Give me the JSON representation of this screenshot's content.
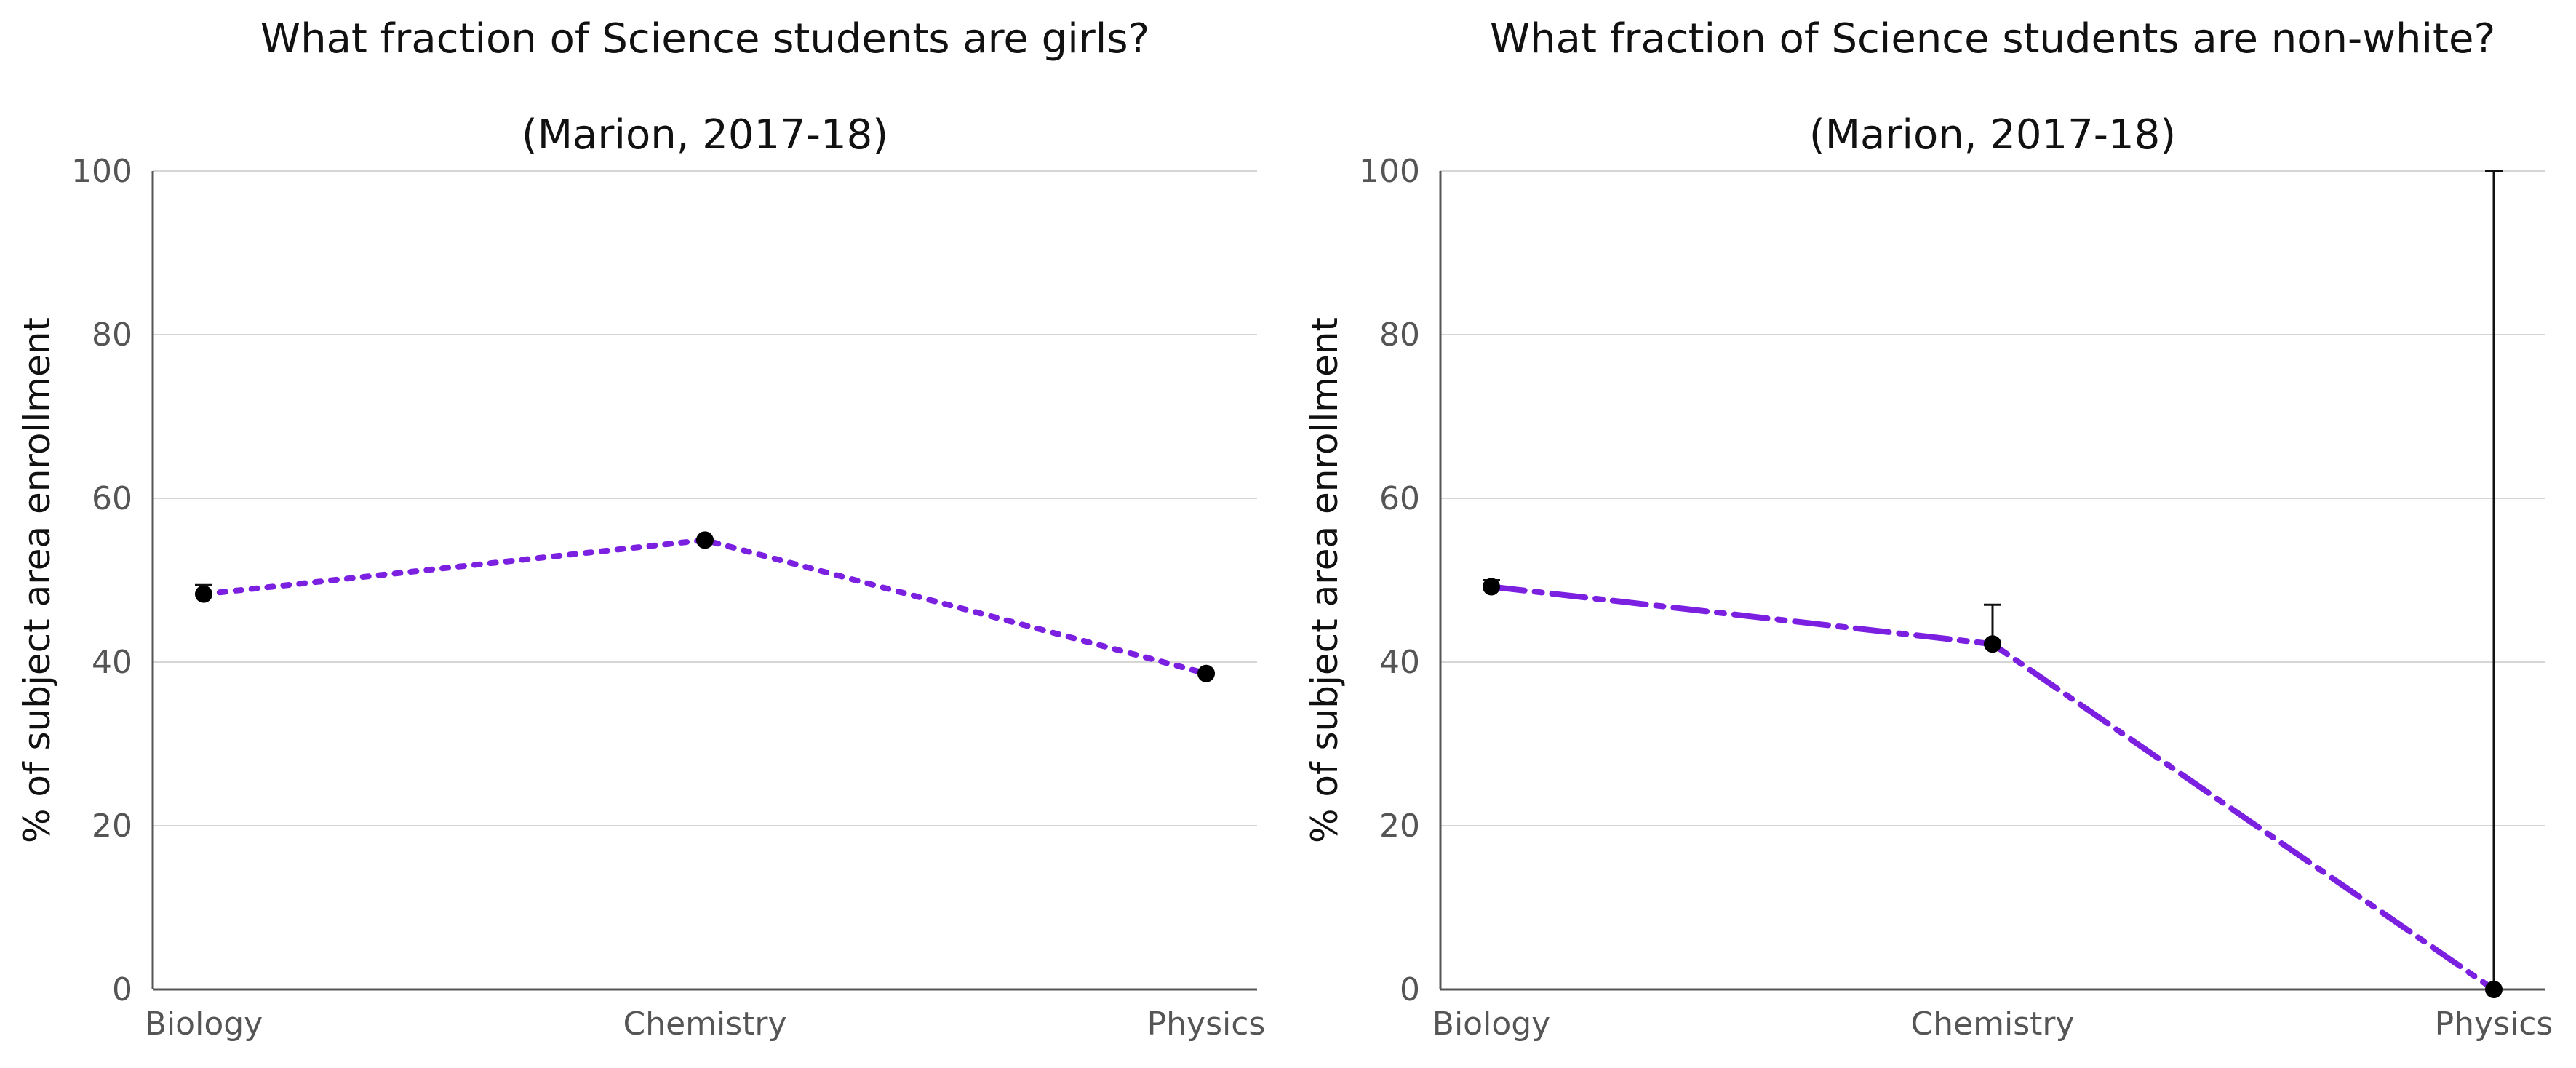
{
  "chart_data": [
    {
      "type": "line",
      "title": "What fraction of Science students are girls?",
      "subtitle": "(Marion, 2017-18)",
      "xlabel": "",
      "ylabel": "% of subject area enrollment",
      "categories": [
        "Biology",
        "Chemistry",
        "Physics"
      ],
      "ylim": [
        0,
        100
      ],
      "yticks": [
        0,
        20,
        40,
        60,
        80,
        100
      ],
      "grid": true,
      "series": [
        {
          "values": [
            48.3,
            54.9,
            38.6
          ],
          "error_upper": [
            49.4,
            55.0,
            38.7
          ],
          "color": "#7b1fe0",
          "line_style": "dotted"
        }
      ]
    },
    {
      "type": "line",
      "title": "What fraction of Science students are non-white?",
      "subtitle": "(Marion, 2017-18)",
      "xlabel": "",
      "ylabel": "% of subject area enrollment",
      "categories": [
        "Biology",
        "Chemistry",
        "Physics"
      ],
      "ylim": [
        0,
        100
      ],
      "yticks": [
        0,
        20,
        40,
        60,
        80,
        100
      ],
      "grid": true,
      "series": [
        {
          "values": [
            49.2,
            42.2,
            0.0
          ],
          "error_upper": [
            50.0,
            47.0,
            100.0
          ],
          "color": "#7b1fe0",
          "line_style": "dashdot"
        }
      ]
    }
  ]
}
